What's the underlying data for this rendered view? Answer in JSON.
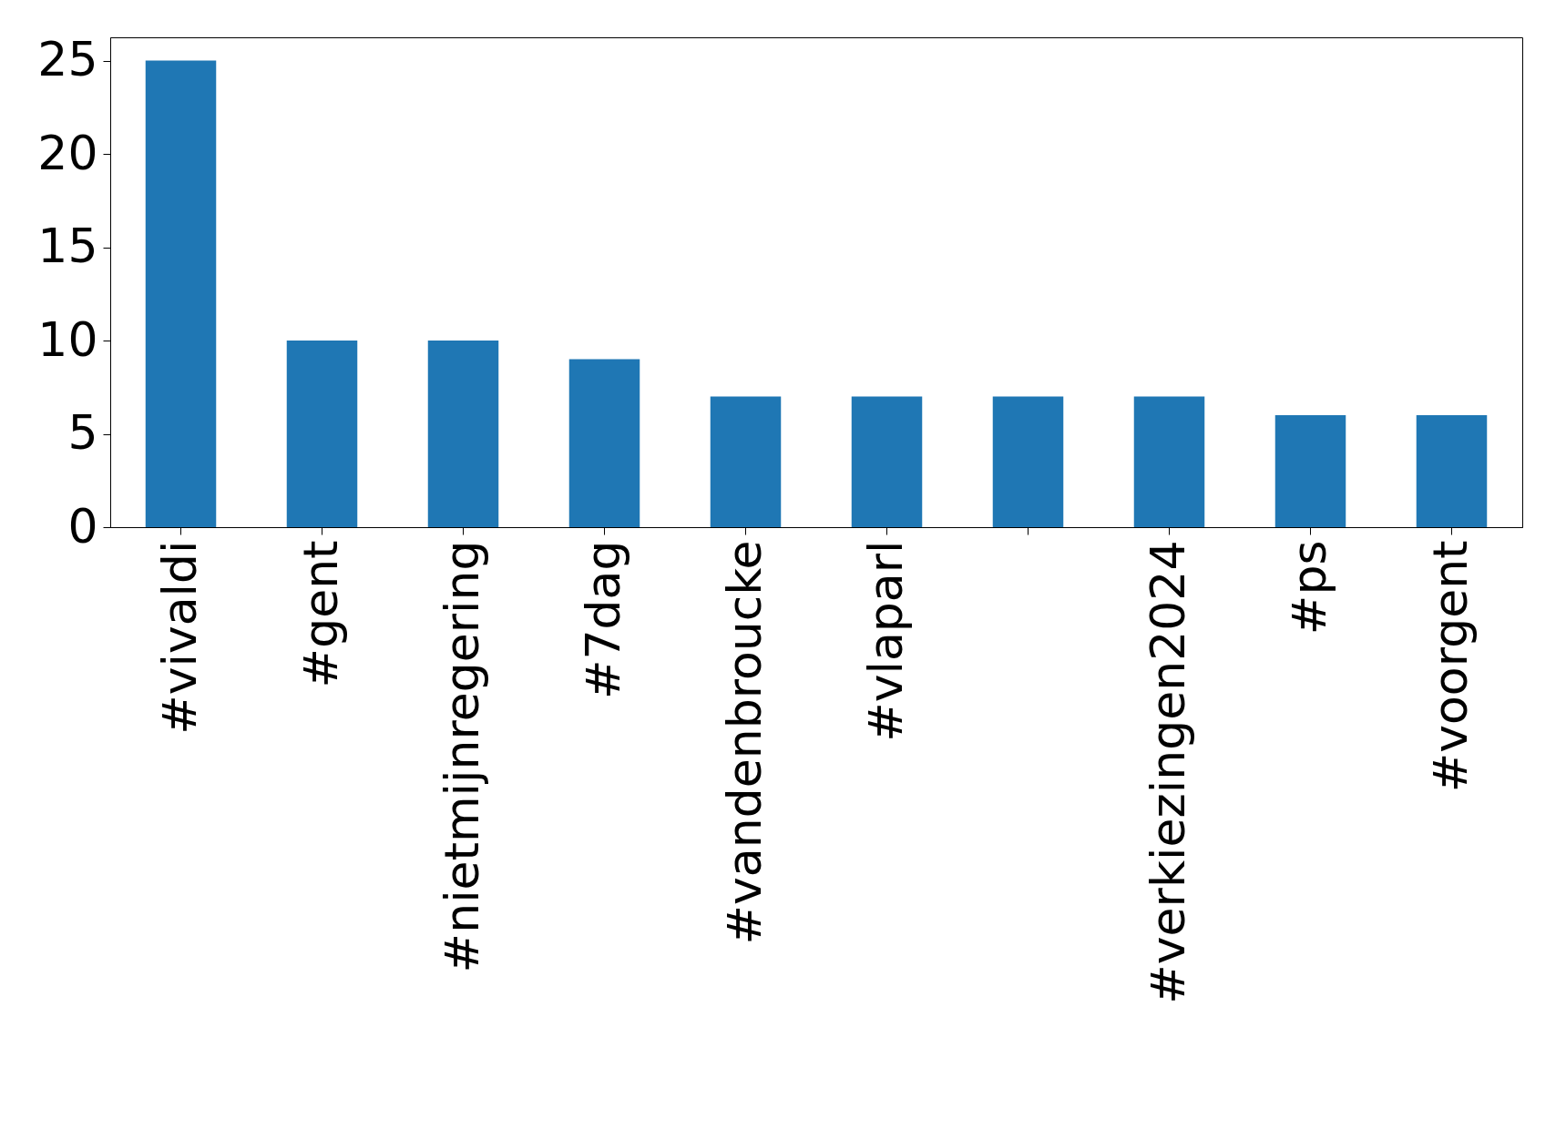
{
  "chart_data": {
    "type": "bar",
    "categories": [
      "#vivaldi",
      "#gent",
      "#nietmijnregering",
      "#7dag",
      "#vandenbroucke",
      "#vlaparl",
      null,
      "#verkiezingen2024",
      "#ps",
      "#voorgent"
    ],
    "values": [
      25,
      10,
      10,
      9,
      7,
      7,
      7,
      7,
      6,
      6
    ],
    "color": "#1f77b4",
    "ylim": [
      0,
      26.25
    ],
    "yticks": [
      0,
      5,
      10,
      15,
      20,
      25
    ],
    "grid": false
  }
}
